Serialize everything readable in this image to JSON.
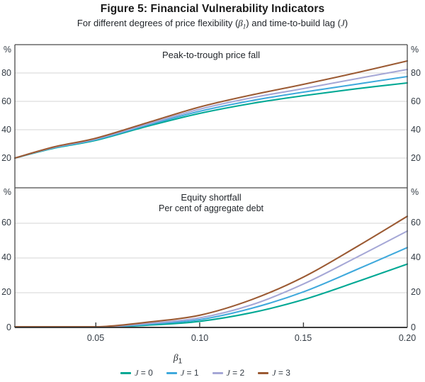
{
  "figure": {
    "title": "Figure 5: Financial Vulnerability Indicators",
    "subtitle": {
      "part1": "For different degrees of price flexibility (",
      "beta_symbol": "β",
      "beta_subscript": "1",
      "part2": ") and time-to-build lag (",
      "j_symbol": "J",
      "part3": ")"
    }
  },
  "style": {
    "grid_color": "#d6d6d6",
    "frame_color": "#4a4a4a",
    "axis_color": "#3c3c3c",
    "text_color": "#333b44",
    "background": "#ffffff"
  },
  "chart_data": {
    "type": "line",
    "x_axis": {
      "label_symbol": "β",
      "label_subscript": "1",
      "min": 0.011,
      "max": 0.2,
      "ticks": [
        0.05,
        0.1,
        0.15,
        0.2
      ],
      "tick_labels": [
        "0.05",
        "0.10",
        "0.15",
        "0.20"
      ],
      "inner_tick_marks": [
        0.05,
        0.1,
        0.15
      ]
    },
    "panels": [
      {
        "title": "Peak-to-trough price fall",
        "subtitle": "",
        "unit": "%",
        "ylim": [
          -1,
          100
        ],
        "gridlines": [
          20,
          40,
          60,
          80
        ],
        "yticks": [
          80,
          60,
          40,
          20
        ],
        "ytick_labels": [
          "80",
          "60",
          "40",
          "20"
        ],
        "series": [
          {
            "id": "j0",
            "symbol": "J",
            "suffix": " = 0",
            "name": "J = 0",
            "color": "#00a894",
            "points": [
              [
                0.011,
                20
              ],
              [
                0.03,
                27
              ],
              [
                0.05,
                32.5
              ],
              [
                0.075,
                42.5
              ],
              [
                0.1,
                51.5
              ],
              [
                0.125,
                58.5
              ],
              [
                0.15,
                64
              ],
              [
                0.175,
                68.8
              ],
              [
                0.2,
                73
              ]
            ]
          },
          {
            "id": "j1",
            "symbol": "J",
            "suffix": " = 1",
            "name": "J = 1",
            "color": "#3fa9dc",
            "points": [
              [
                0.011,
                20
              ],
              [
                0.03,
                27.3
              ],
              [
                0.05,
                33
              ],
              [
                0.075,
                43.3
              ],
              [
                0.1,
                53
              ],
              [
                0.125,
                60.5
              ],
              [
                0.15,
                66.5
              ],
              [
                0.175,
                72
              ],
              [
                0.2,
                77.5
              ]
            ]
          },
          {
            "id": "j2",
            "symbol": "J",
            "suffix": " = 2",
            "name": "J = 2",
            "color": "#a5a7d6",
            "points": [
              [
                0.011,
                20
              ],
              [
                0.03,
                27.6
              ],
              [
                0.05,
                33.5
              ],
              [
                0.075,
                44
              ],
              [
                0.1,
                54.5
              ],
              [
                0.125,
                62.5
              ],
              [
                0.15,
                69
              ],
              [
                0.175,
                75.8
              ],
              [
                0.2,
                82.5
              ]
            ]
          },
          {
            "id": "j3",
            "symbol": "J",
            "suffix": " = 3",
            "name": "J = 3",
            "color": "#9b5a33",
            "points": [
              [
                0.011,
                20
              ],
              [
                0.03,
                27.9
              ],
              [
                0.05,
                34
              ],
              [
                0.075,
                45
              ],
              [
                0.1,
                56
              ],
              [
                0.125,
                64.5
              ],
              [
                0.15,
                72
              ],
              [
                0.175,
                80
              ],
              [
                0.2,
                88.5
              ]
            ]
          }
        ]
      },
      {
        "title": "Equity shortfall",
        "subtitle": "Per cent of aggregate debt",
        "unit": "%",
        "ylim": [
          0,
          80.4
        ],
        "gridlines": [
          20,
          40,
          60
        ],
        "yticks": [
          60,
          40,
          20,
          0
        ],
        "ytick_labels": [
          "60",
          "40",
          "20",
          "0"
        ],
        "series": [
          {
            "id": "j0",
            "symbol": "J",
            "suffix": " = 0",
            "name": "J = 0",
            "color": "#00a894",
            "points": [
              [
                0.011,
                0
              ],
              [
                0.04,
                0
              ],
              [
                0.055,
                0.2
              ],
              [
                0.075,
                1.3
              ],
              [
                0.1,
                3.5
              ],
              [
                0.125,
                8.5
              ],
              [
                0.15,
                16
              ],
              [
                0.175,
                26
              ],
              [
                0.2,
                36.5
              ]
            ]
          },
          {
            "id": "j1",
            "symbol": "J",
            "suffix": " = 1",
            "name": "J = 1",
            "color": "#3fa9dc",
            "points": [
              [
                0.011,
                0
              ],
              [
                0.04,
                0
              ],
              [
                0.055,
                0.3
              ],
              [
                0.075,
                1.8
              ],
              [
                0.1,
                4.5
              ],
              [
                0.125,
                11
              ],
              [
                0.15,
                20.5
              ],
              [
                0.175,
                33
              ],
              [
                0.2,
                46
              ]
            ]
          },
          {
            "id": "j2",
            "symbol": "J",
            "suffix": " = 2",
            "name": "J = 2",
            "color": "#a5a7d6",
            "points": [
              [
                0.011,
                0
              ],
              [
                0.04,
                0
              ],
              [
                0.055,
                0.4
              ],
              [
                0.075,
                2.3
              ],
              [
                0.1,
                5.5
              ],
              [
                0.125,
                13
              ],
              [
                0.15,
                25
              ],
              [
                0.175,
                40
              ],
              [
                0.2,
                55.5
              ]
            ]
          },
          {
            "id": "j3",
            "symbol": "J",
            "suffix": " = 3",
            "name": "J = 3",
            "color": "#9b5a33",
            "points": [
              [
                0.011,
                0
              ],
              [
                0.04,
                0.1
              ],
              [
                0.055,
                0.6
              ],
              [
                0.075,
                3
              ],
              [
                0.1,
                7
              ],
              [
                0.125,
                16
              ],
              [
                0.15,
                29
              ],
              [
                0.175,
                46
              ],
              [
                0.2,
                64
              ]
            ]
          }
        ]
      }
    ],
    "legend": [
      {
        "symbol": "J",
        "suffix": " = 0",
        "color": "#00a894"
      },
      {
        "symbol": "J",
        "suffix": " = 1",
        "color": "#3fa9dc"
      },
      {
        "symbol": "J",
        "suffix": " = 2",
        "color": "#a5a7d6"
      },
      {
        "symbol": "J",
        "suffix": " = 3",
        "color": "#9b5a33"
      }
    ]
  }
}
